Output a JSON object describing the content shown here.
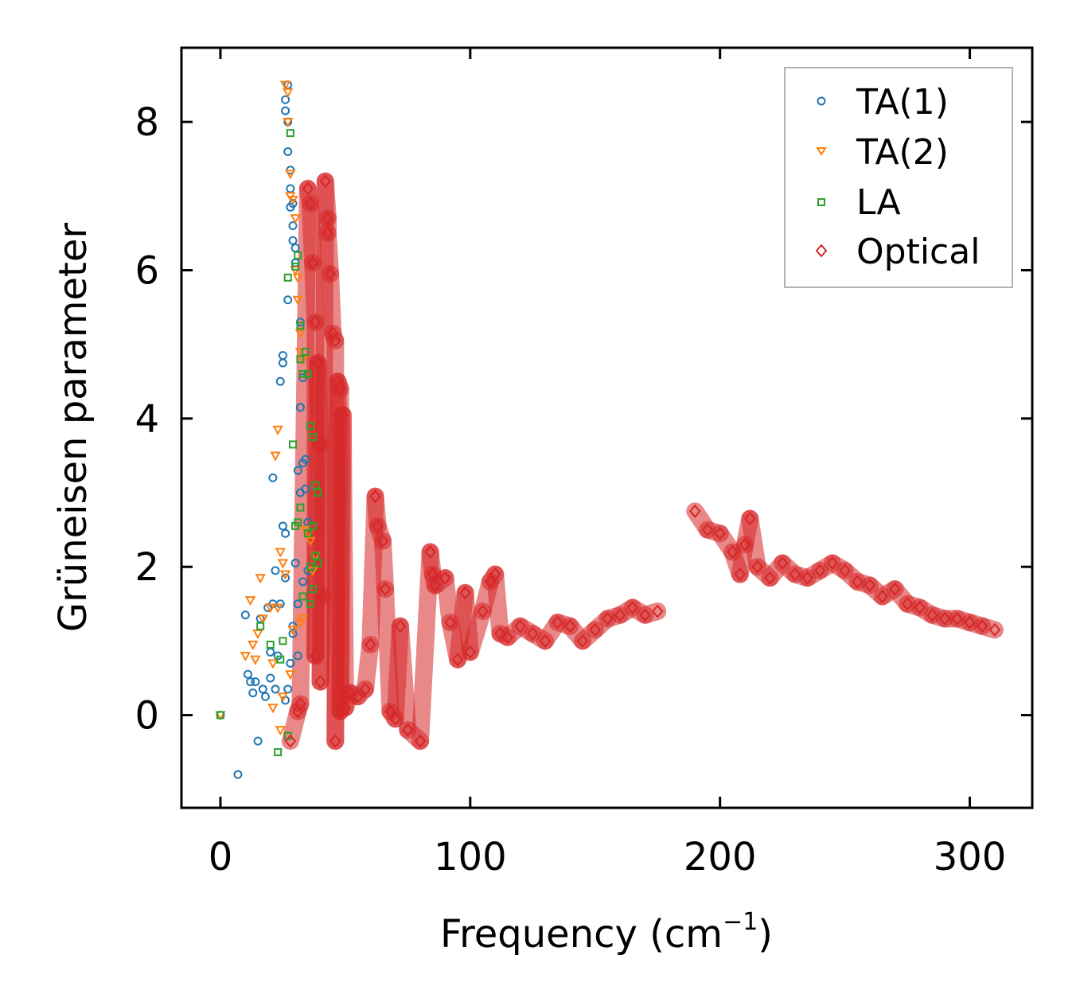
{
  "chart_data": {
    "type": "scatter",
    "title": "",
    "xlabel": "Frequency (cm",
    "xlabel_sup": "−1",
    "xlabel_close": ")",
    "ylabel": "Grüneisen parameter",
    "xlim": [
      -15.6,
      325
    ],
    "ylim": [
      -1.25,
      9.0
    ],
    "x_ticks": [
      0,
      100,
      200,
      300
    ],
    "x_tick_labels": [
      "0",
      "100",
      "200",
      "300"
    ],
    "y_ticks": [
      0,
      2,
      4,
      6,
      8
    ],
    "y_tick_labels": [
      "0",
      "2",
      "4",
      "6",
      "8"
    ],
    "grid": false,
    "legend_position": "top-right",
    "series": [
      {
        "name": "TA(1)",
        "marker": "circle",
        "color": "#1f77b4",
        "points": [
          [
            0,
            0
          ],
          [
            7,
            -0.8
          ],
          [
            10,
            1.35
          ],
          [
            11,
            0.55
          ],
          [
            12,
            0.45
          ],
          [
            13,
            0.3
          ],
          [
            14,
            0.45
          ],
          [
            15,
            -0.35
          ],
          [
            16,
            1.3
          ],
          [
            17,
            0.35
          ],
          [
            18,
            0.25
          ],
          [
            19,
            1.45
          ],
          [
            20,
            0.85
          ],
          [
            20,
            0.5
          ],
          [
            21,
            3.2
          ],
          [
            21,
            1.5
          ],
          [
            22,
            0.35
          ],
          [
            22,
            1.95
          ],
          [
            23,
            0.8
          ],
          [
            24,
            4.5
          ],
          [
            24,
            1.5
          ],
          [
            25,
            4.75
          ],
          [
            25,
            4.85
          ],
          [
            25,
            2.55
          ],
          [
            26,
            1.85
          ],
          [
            26,
            2.45
          ],
          [
            26,
            0.2
          ],
          [
            27,
            0.35
          ],
          [
            27,
            5.6
          ],
          [
            27,
            7.6
          ],
          [
            27,
            8.0
          ],
          [
            27,
            8.5
          ],
          [
            26,
            8.3
          ],
          [
            26,
            8.15
          ],
          [
            28,
            7.35
          ],
          [
            28,
            7.1
          ],
          [
            28,
            6.85
          ],
          [
            28,
            0.7
          ],
          [
            29,
            1.2
          ],
          [
            29,
            1.1
          ],
          [
            29,
            6.6
          ],
          [
            29,
            6.4
          ],
          [
            30,
            6.1
          ],
          [
            30,
            2.05
          ],
          [
            31,
            3.3
          ],
          [
            31,
            0.8
          ],
          [
            31,
            1.5
          ],
          [
            32,
            5.3
          ],
          [
            32,
            4.15
          ],
          [
            32,
            3.0
          ],
          [
            33,
            3.4
          ],
          [
            33,
            4.55
          ],
          [
            33,
            1.8
          ],
          [
            34,
            3.45
          ],
          [
            34,
            3.05
          ],
          [
            35,
            2.6
          ],
          [
            35,
            1.95
          ],
          [
            30,
            6.3
          ],
          [
            29,
            6.9
          ]
        ]
      },
      {
        "name": "TA(2)",
        "marker": "triangle",
        "color": "#ff7f0e",
        "points": [
          [
            0,
            0
          ],
          [
            10,
            0.8
          ],
          [
            12,
            1.55
          ],
          [
            13,
            0.95
          ],
          [
            14,
            0.75
          ],
          [
            15,
            1.1
          ],
          [
            16,
            1.85
          ],
          [
            17,
            1.3
          ],
          [
            20,
            1.45
          ],
          [
            21,
            0.7
          ],
          [
            21,
            0.1
          ],
          [
            22,
            3.5
          ],
          [
            23,
            3.85
          ],
          [
            23,
            1.45
          ],
          [
            24,
            -0.2
          ],
          [
            24,
            2.2
          ],
          [
            25,
            0.25
          ],
          [
            25,
            2.05
          ],
          [
            26,
            1.9
          ],
          [
            26,
            8.5
          ],
          [
            27,
            8.4
          ],
          [
            27,
            8.0
          ],
          [
            28,
            7.3
          ],
          [
            28,
            7.0
          ],
          [
            28,
            0.55
          ],
          [
            29,
            6.95
          ],
          [
            29,
            1.15
          ],
          [
            30,
            6.7
          ],
          [
            30,
            6.0
          ],
          [
            31,
            5.9
          ],
          [
            31,
            5.6
          ],
          [
            32,
            5.15
          ],
          [
            32,
            4.9
          ],
          [
            32,
            1.25
          ],
          [
            33,
            4.8
          ],
          [
            33,
            1.3
          ],
          [
            34,
            2.5
          ],
          [
            35,
            2.45
          ],
          [
            36,
            2.35
          ],
          [
            37,
            1.95
          ],
          [
            38,
            2.15
          ]
        ]
      },
      {
        "name": "LA",
        "marker": "square",
        "color": "#2ca02c",
        "points": [
          [
            0,
            0
          ],
          [
            16,
            1.2
          ],
          [
            20,
            0.95
          ],
          [
            23,
            -0.5
          ],
          [
            24,
            0.75
          ],
          [
            25,
            1.0
          ],
          [
            27,
            -0.28
          ],
          [
            27,
            5.9
          ],
          [
            28,
            7.85
          ],
          [
            29,
            3.65
          ],
          [
            30,
            6.05
          ],
          [
            30,
            2.55
          ],
          [
            31,
            6.2
          ],
          [
            31,
            2.6
          ],
          [
            32,
            5.25
          ],
          [
            32,
            4.8
          ],
          [
            32,
            2.8
          ],
          [
            33,
            4.6
          ],
          [
            33,
            1.6
          ],
          [
            34,
            4.9
          ],
          [
            35,
            4.6
          ],
          [
            35,
            2.45
          ],
          [
            36,
            3.9
          ],
          [
            36,
            2.0
          ],
          [
            37,
            3.75
          ],
          [
            37,
            2.55
          ],
          [
            38,
            3.1
          ],
          [
            38,
            2.15
          ],
          [
            39,
            3.0
          ],
          [
            39,
            2.05
          ],
          [
            37,
            1.7
          ],
          [
            36,
            1.5
          ]
        ]
      },
      {
        "name": "Optical",
        "marker": "diamond",
        "color": "#d62728",
        "points": [
          [
            28,
            -0.35
          ],
          [
            31,
            0.05
          ],
          [
            32,
            0.15
          ],
          [
            35,
            7.1
          ],
          [
            36,
            6.9
          ],
          [
            37,
            6.1
          ],
          [
            38,
            5.3
          ],
          [
            38,
            0.8
          ],
          [
            39,
            4.75
          ],
          [
            40,
            3.65
          ],
          [
            40,
            0.45
          ],
          [
            41,
            1.6
          ],
          [
            42,
            7.2
          ],
          [
            43,
            6.7
          ],
          [
            43,
            6.5
          ],
          [
            44,
            5.95
          ],
          [
            45,
            5.15
          ],
          [
            46,
            5.05
          ],
          [
            46,
            -0.35
          ],
          [
            47,
            4.5
          ],
          [
            48,
            4.4
          ],
          [
            48,
            0.05
          ],
          [
            49,
            4.05
          ],
          [
            50,
            0.1
          ],
          [
            52,
            0.3
          ],
          [
            55,
            0.25
          ],
          [
            58,
            0.35
          ],
          [
            60,
            0.95
          ],
          [
            62,
            2.95
          ],
          [
            63,
            2.55
          ],
          [
            65,
            2.35
          ],
          [
            66,
            1.7
          ],
          [
            68,
            0.05
          ],
          [
            70,
            -0.05
          ],
          [
            72,
            1.2
          ],
          [
            75,
            -0.2
          ],
          [
            80,
            -0.35
          ],
          [
            84,
            2.2
          ],
          [
            85,
            1.9
          ],
          [
            86,
            1.75
          ],
          [
            90,
            1.85
          ],
          [
            92,
            1.25
          ],
          [
            95,
            0.75
          ],
          [
            98,
            1.65
          ],
          [
            100,
            0.85
          ],
          [
            105,
            1.4
          ],
          [
            108,
            1.8
          ],
          [
            110,
            1.9
          ],
          [
            112,
            1.1
          ],
          [
            115,
            1.05
          ],
          [
            120,
            1.2
          ],
          [
            125,
            1.1
          ],
          [
            130,
            1.0
          ],
          [
            135,
            1.25
          ],
          [
            140,
            1.2
          ],
          [
            145,
            1.0
          ],
          [
            150,
            1.15
          ],
          [
            155,
            1.3
          ],
          [
            160,
            1.35
          ],
          [
            165,
            1.45
          ],
          [
            170,
            1.35
          ],
          [
            175,
            1.4
          ],
          [
            190,
            2.75
          ],
          [
            195,
            2.5
          ],
          [
            200,
            2.45
          ],
          [
            205,
            2.2
          ],
          [
            208,
            1.9
          ],
          [
            210,
            2.3
          ],
          [
            212,
            2.65
          ],
          [
            215,
            2.0
          ],
          [
            220,
            1.85
          ],
          [
            225,
            2.05
          ],
          [
            230,
            1.9
          ],
          [
            235,
            1.85
          ],
          [
            240,
            1.95
          ],
          [
            245,
            2.05
          ],
          [
            250,
            1.95
          ],
          [
            255,
            1.8
          ],
          [
            260,
            1.75
          ],
          [
            265,
            1.6
          ],
          [
            270,
            1.7
          ],
          [
            275,
            1.5
          ],
          [
            280,
            1.45
          ],
          [
            285,
            1.35
          ],
          [
            290,
            1.3
          ],
          [
            295,
            1.3
          ],
          [
            300,
            1.25
          ],
          [
            305,
            1.2
          ],
          [
            310,
            1.15
          ]
        ]
      }
    ]
  }
}
